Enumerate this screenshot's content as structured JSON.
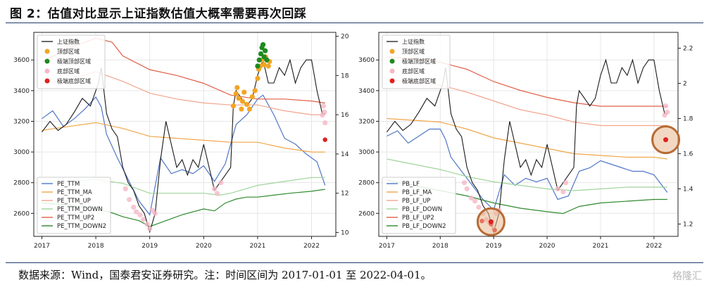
{
  "figure": {
    "title": "图 2：估值对比显示上证指数估值大概率需要再次回踩",
    "source_note": "数据来源：Wind，国泰君安证券研究。注：时间区间为 2017-01-01 至 2022-04-01。",
    "watermark": "格隆汇"
  },
  "chart_data": [
    {
      "type": "line",
      "id": "left",
      "x_ticks": [
        "2017",
        "2018",
        "2019",
        "2020",
        "2021",
        "2022"
      ],
      "y_left": {
        "ticks": [
          2600,
          2800,
          3000,
          3200,
          3400,
          3600
        ],
        "range": [
          2450,
          3780
        ]
      },
      "y_right": {
        "ticks": [
          10,
          12,
          14,
          16,
          18,
          20
        ],
        "range": [
          9.8,
          20.2
        ]
      },
      "grid": true,
      "index_series": {
        "name": "上证指数",
        "color": "#1a1a1a",
        "x": [
          2017.0,
          2017.15,
          2017.3,
          2017.45,
          2017.6,
          2017.75,
          2017.9,
          2018.05,
          2018.1,
          2018.2,
          2018.3,
          2018.4,
          2018.5,
          2018.6,
          2018.7,
          2018.8,
          2018.9,
          2019.0,
          2019.1,
          2019.2,
          2019.3,
          2019.4,
          2019.5,
          2019.6,
          2019.7,
          2019.8,
          2019.9,
          2020.0,
          2020.1,
          2020.2,
          2020.3,
          2020.4,
          2020.5,
          2020.55,
          2020.6,
          2020.7,
          2020.8,
          2020.9,
          2021.0,
          2021.1,
          2021.2,
          2021.3,
          2021.4,
          2021.5,
          2021.6,
          2021.7,
          2021.8,
          2021.9,
          2022.0,
          2022.1,
          2022.2,
          2022.25
        ],
        "y": [
          3130,
          3200,
          3140,
          3180,
          3260,
          3350,
          3300,
          3450,
          3550,
          3250,
          3150,
          3100,
          2900,
          2800,
          2750,
          2650,
          2600,
          2480,
          2600,
          2950,
          3200,
          3050,
          2900,
          2950,
          2850,
          2950,
          2900,
          3050,
          2900,
          2750,
          2800,
          2850,
          2900,
          3300,
          3400,
          3350,
          3300,
          3350,
          3500,
          3600,
          3450,
          3450,
          3550,
          3500,
          3600,
          3450,
          3550,
          3600,
          3600,
          3400,
          3250,
          3250
        ]
      },
      "series": [
        {
          "name": "PE_TTM",
          "color": "#4f77c6",
          "x": [
            2017.0,
            2017.2,
            2017.4,
            2017.6,
            2017.8,
            2018.0,
            2018.1,
            2018.2,
            2018.4,
            2018.6,
            2018.8,
            2019.0,
            2019.2,
            2019.4,
            2019.6,
            2019.8,
            2020.0,
            2020.2,
            2020.4,
            2020.6,
            2020.8,
            2021.0,
            2021.1,
            2021.3,
            2021.5,
            2021.7,
            2021.9,
            2022.1,
            2022.25
          ],
          "y": [
            15.8,
            16.2,
            15.4,
            15.8,
            16.3,
            16.9,
            16.4,
            15.0,
            13.8,
            12.7,
            11.6,
            10.9,
            13.8,
            13.0,
            13.2,
            13.0,
            13.4,
            12.6,
            13.5,
            15.5,
            16.0,
            16.8,
            17.0,
            16.0,
            14.8,
            14.5,
            14.0,
            13.6,
            12.4
          ]
        },
        {
          "name": "PE_TTM_MA",
          "color": "#f0a64a",
          "x": [
            2017.0,
            2017.5,
            2018.0,
            2018.5,
            2019.0,
            2019.5,
            2020.0,
            2020.5,
            2021.0,
            2021.5,
            2022.0,
            2022.25
          ],
          "y": [
            15.2,
            15.4,
            15.6,
            15.3,
            14.9,
            14.8,
            14.7,
            14.6,
            14.6,
            14.3,
            14.1,
            14.1
          ]
        },
        {
          "name": "PE_TTM_UP",
          "color": "#f2a58d",
          "x": [
            2017.0,
            2017.5,
            2018.0,
            2018.5,
            2019.0,
            2019.5,
            2020.0,
            2020.5,
            2021.0,
            2021.5,
            2022.0,
            2022.25
          ],
          "y": [
            17.6,
            17.8,
            18.2,
            17.7,
            17.1,
            16.8,
            16.6,
            16.5,
            16.5,
            16.2,
            16.0,
            16.0
          ]
        },
        {
          "name": "PE_TTM_DOWN",
          "color": "#9fd49a",
          "x": [
            2017.0,
            2017.5,
            2018.0,
            2018.5,
            2019.0,
            2019.5,
            2020.0,
            2020.3,
            2020.5,
            2021.0,
            2021.5,
            2022.0,
            2022.25
          ],
          "y": [
            12.6,
            12.6,
            12.7,
            12.5,
            12.0,
            12.0,
            12.0,
            11.9,
            12.0,
            12.4,
            12.6,
            12.8,
            12.8
          ]
        },
        {
          "name": "PE_TTM_UP2",
          "color": "#e06048",
          "x": [
            2017.0,
            2017.5,
            2018.0,
            2018.3,
            2018.5,
            2019.0,
            2019.5,
            2020.0,
            2020.5,
            2021.0,
            2021.5,
            2022.0,
            2022.25
          ],
          "y": [
            18.7,
            19.4,
            19.9,
            19.7,
            19.0,
            18.3,
            18.0,
            17.6,
            17.0,
            16.8,
            16.8,
            16.7,
            16.6
          ]
        },
        {
          "name": "PE_TTM_DOWN2",
          "color": "#2f8a2f",
          "x": [
            2017.0,
            2017.5,
            2018.0,
            2018.3,
            2018.5,
            2018.8,
            2019.0,
            2019.3,
            2019.6,
            2020.0,
            2020.2,
            2020.4,
            2020.6,
            2020.8,
            2021.0,
            2021.3,
            2021.6,
            2022.0,
            2022.25
          ],
          "y": [
            11.5,
            11.4,
            11.2,
            11.0,
            10.8,
            10.6,
            10.3,
            10.6,
            10.9,
            11.2,
            11.1,
            11.5,
            11.7,
            11.8,
            11.8,
            11.9,
            12.0,
            12.1,
            12.2
          ]
        }
      ],
      "markers": [
        {
          "name": "顶部区域",
          "color": "#f2a526",
          "x": [
            2020.55,
            2020.6,
            2020.62,
            2020.65,
            2020.7,
            2020.72,
            2020.75,
            2020.8,
            2020.85,
            2020.9,
            2020.95,
            2021.0,
            2021.02,
            2021.05,
            2021.08,
            2021.12,
            2021.15,
            2021.2,
            2021.22
          ],
          "y": [
            3300,
            3380,
            3420,
            3350,
            3280,
            3330,
            3390,
            3310,
            3280,
            3360,
            3400,
            3480,
            3540,
            3560,
            3600,
            3570,
            3620,
            3560,
            3590
          ]
        },
        {
          "name": "极端顶部区域",
          "color": "#1e8a1e",
          "x": [
            2021.0,
            2021.03,
            2021.06,
            2021.08,
            2021.1,
            2021.12,
            2021.14,
            2021.17
          ],
          "y": [
            3560,
            3600,
            3640,
            3680,
            3700,
            3620,
            3660,
            3600
          ]
        },
        {
          "name": "底部区域",
          "color": "#f5b8c6",
          "x": [
            2018.55,
            2018.62,
            2018.7,
            2018.75,
            2018.82,
            2018.88,
            2018.95,
            2019.0,
            2019.05,
            2019.1,
            2020.2,
            2020.25,
            2020.32,
            2022.2,
            2022.22,
            2022.24,
            2022.25
          ],
          "y": [
            2760,
            2690,
            2640,
            2610,
            2590,
            2560,
            2530,
            2500,
            2620,
            2600,
            2760,
            2730,
            2800,
            3240,
            3300,
            3260,
            3190
          ]
        },
        {
          "name": "极端底部区域",
          "color": "#e02020",
          "x": [
            2022.25
          ],
          "y": [
            3080
          ]
        }
      ]
    },
    {
      "type": "line",
      "id": "right",
      "x_ticks": [
        "2017",
        "2018",
        "2019",
        "2020",
        "2021",
        "2022"
      ],
      "y_left": {
        "ticks": [
          2600,
          2800,
          3000,
          3200,
          3400,
          3600
        ],
        "range": [
          2450,
          3780
        ]
      },
      "y_right": {
        "ticks": [
          1.2,
          1.4,
          1.6,
          1.8,
          2.0,
          2.2
        ],
        "range": [
          1.13,
          2.29
        ]
      },
      "grid": true,
      "index_series": {
        "name": "上证指数",
        "color": "#1a1a1a",
        "x": [
          2017.0,
          2017.15,
          2017.3,
          2017.45,
          2017.6,
          2017.75,
          2017.9,
          2018.05,
          2018.1,
          2018.2,
          2018.3,
          2018.4,
          2018.5,
          2018.6,
          2018.7,
          2018.8,
          2018.9,
          2019.0,
          2019.1,
          2019.2,
          2019.3,
          2019.4,
          2019.5,
          2019.6,
          2019.7,
          2019.8,
          2019.9,
          2020.0,
          2020.1,
          2020.2,
          2020.3,
          2020.4,
          2020.5,
          2020.55,
          2020.6,
          2020.7,
          2020.8,
          2020.9,
          2021.0,
          2021.1,
          2021.2,
          2021.3,
          2021.4,
          2021.5,
          2021.6,
          2021.7,
          2021.8,
          2021.9,
          2022.0,
          2022.1,
          2022.2,
          2022.25
        ],
        "y": [
          3130,
          3200,
          3140,
          3180,
          3260,
          3350,
          3300,
          3450,
          3550,
          3250,
          3150,
          3100,
          2900,
          2800,
          2750,
          2650,
          2600,
          2480,
          2600,
          2950,
          3200,
          3050,
          2900,
          2950,
          2850,
          2950,
          2900,
          3050,
          2900,
          2750,
          2800,
          2850,
          2900,
          3300,
          3400,
          3350,
          3300,
          3350,
          3500,
          3600,
          3450,
          3450,
          3550,
          3500,
          3600,
          3450,
          3550,
          3600,
          3600,
          3400,
          3250,
          3250
        ]
      },
      "series": [
        {
          "name": "PB_LF",
          "color": "#4f77c6",
          "x": [
            2017.0,
            2017.2,
            2017.4,
            2017.6,
            2017.8,
            2018.0,
            2018.1,
            2018.2,
            2018.4,
            2018.6,
            2018.8,
            2019.0,
            2019.2,
            2019.4,
            2019.6,
            2019.8,
            2020.0,
            2020.2,
            2020.4,
            2020.6,
            2020.8,
            2021.0,
            2021.2,
            2021.4,
            2021.6,
            2021.8,
            2022.0,
            2022.1,
            2022.25
          ],
          "y": [
            1.7,
            1.73,
            1.66,
            1.7,
            1.74,
            1.74,
            1.68,
            1.58,
            1.5,
            1.42,
            1.34,
            1.28,
            1.48,
            1.42,
            1.46,
            1.44,
            1.46,
            1.34,
            1.36,
            1.5,
            1.52,
            1.56,
            1.54,
            1.52,
            1.5,
            1.5,
            1.48,
            1.44,
            1.38
          ]
        },
        {
          "name": "PB_LF_MA",
          "color": "#f0a64a",
          "x": [
            2017.0,
            2017.5,
            2018.0,
            2018.5,
            2019.0,
            2019.5,
            2020.0,
            2020.5,
            2021.0,
            2021.5,
            2022.0,
            2022.25
          ],
          "y": [
            1.8,
            1.79,
            1.78,
            1.74,
            1.69,
            1.66,
            1.63,
            1.6,
            1.59,
            1.58,
            1.58,
            1.57
          ]
        },
        {
          "name": "PB_LF_UP",
          "color": "#f2a58d",
          "x": [
            2017.0,
            2017.5,
            2018.0,
            2018.5,
            2019.0,
            2019.5,
            2020.0,
            2020.5,
            2021.0,
            2021.5,
            2022.0,
            2022.25
          ],
          "y": [
            2.02,
            2.01,
            1.99,
            1.95,
            1.9,
            1.85,
            1.82,
            1.78,
            1.76,
            1.76,
            1.76,
            1.76
          ]
        },
        {
          "name": "PB_LF_DOWN",
          "color": "#9fd49a",
          "x": [
            2017.0,
            2017.5,
            2018.0,
            2018.5,
            2019.0,
            2019.5,
            2020.0,
            2020.5,
            2021.0,
            2021.5,
            2022.0,
            2022.25
          ],
          "y": [
            1.57,
            1.54,
            1.51,
            1.47,
            1.44,
            1.42,
            1.4,
            1.39,
            1.4,
            1.41,
            1.41,
            1.41
          ]
        },
        {
          "name": "PB_LF_UP2",
          "color": "#e06048",
          "x": [
            2017.0,
            2017.5,
            2018.0,
            2018.5,
            2019.0,
            2019.5,
            2020.0,
            2020.5,
            2021.0,
            2021.5,
            2022.0,
            2022.25
          ],
          "y": [
            2.15,
            2.14,
            2.12,
            2.08,
            2.01,
            1.96,
            1.92,
            1.89,
            1.87,
            1.87,
            1.87,
            1.87
          ]
        },
        {
          "name": "PB_LF_DOWN2",
          "color": "#2f8a2f",
          "x": [
            2017.0,
            2017.5,
            2018.0,
            2018.5,
            2019.0,
            2019.5,
            2020.0,
            2020.3,
            2020.6,
            2021.0,
            2021.5,
            2022.0,
            2022.25
          ],
          "y": [
            1.45,
            1.42,
            1.39,
            1.36,
            1.32,
            1.29,
            1.27,
            1.26,
            1.3,
            1.32,
            1.33,
            1.34,
            1.34
          ]
        }
      ],
      "markers": [
        {
          "name": "顶部区域",
          "color": "#f2a526",
          "x": [],
          "y": []
        },
        {
          "name": "极端顶部区域",
          "color": "#1e8a1e",
          "x": [],
          "y": []
        },
        {
          "name": "底部区域",
          "color": "#f5b8c6",
          "x": [
            2018.45,
            2018.5,
            2018.58,
            2018.65,
            2018.72,
            2018.8,
            2018.86,
            2018.92,
            2019.0,
            2019.05,
            2019.1,
            2020.2,
            2020.3,
            2020.35,
            2022.2,
            2022.22,
            2022.25
          ],
          "y": [
            2800,
            2760,
            2700,
            2680,
            2640,
            2600,
            2560,
            2540,
            2500,
            2600,
            2620,
            2760,
            2740,
            2800,
            3240,
            3300,
            3260
          ]
        },
        {
          "name": "极端底部区域",
          "color": "#e02020",
          "x": [
            2018.78,
            2018.95,
            2019.02,
            2022.22
          ],
          "y": [
            2550,
            2530,
            2490,
            3080
          ]
        }
      ],
      "highlights": [
        {
          "x": 2018.95,
          "y": 2545
        },
        {
          "x": 2022.22,
          "y": 3080
        }
      ]
    }
  ]
}
